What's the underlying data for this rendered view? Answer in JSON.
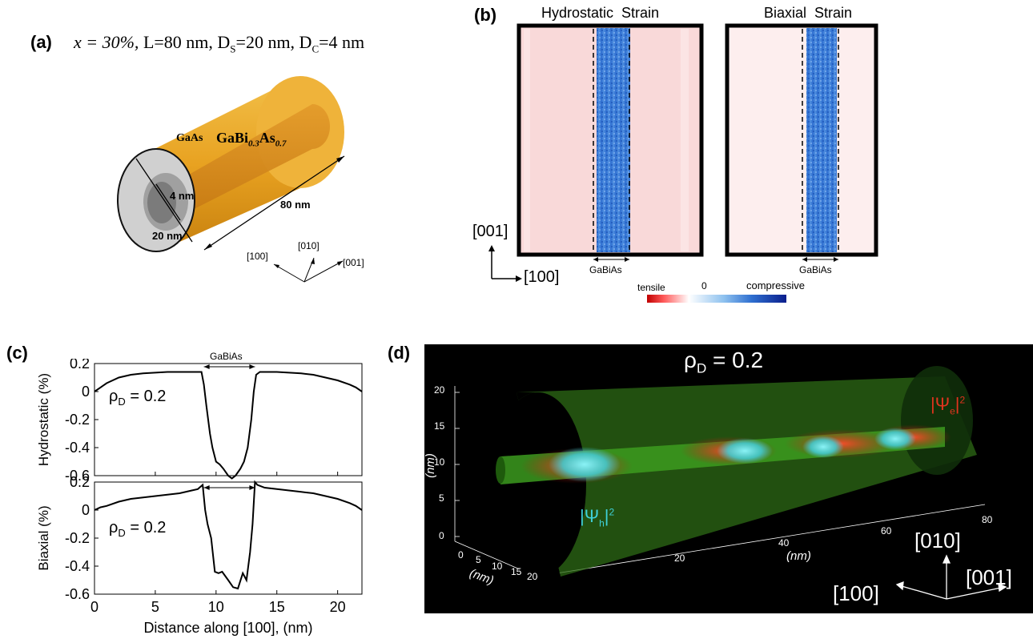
{
  "panel_a": {
    "label": "(a)",
    "params_x": "x = 30%,",
    "params_rest_L": "L=80 nm, D",
    "ds_sub": "S",
    "ds_val": "=20 nm, D",
    "dc_sub": "C",
    "dc_val": "=4 nm",
    "shell_label": "GaAs",
    "core_label_main": "GaBi",
    "core_sub_1": "0.3",
    "core_label_as": "As",
    "core_sub_2": "0.7",
    "dim_core": "4 nm",
    "dim_shell": "20 nm",
    "dim_length": "80 nm",
    "axis_100": "[100]",
    "axis_010": "[010]",
    "axis_001": "[001]"
  },
  "panel_b": {
    "label": "(b)",
    "title_left": "Hydrostatic  Strain",
    "title_right": "Biaxial  Strain",
    "region_label_left": "GaBiAs",
    "region_label_right": "GaBiAs",
    "axis_vertical": "[001]",
    "axis_horizontal": "[100]",
    "colorbar_tensile": "tensile",
    "colorbar_zero": "0",
    "colorbar_compressive": "compressive",
    "colors": {
      "tensile": "#d7191c",
      "neutral": "#ffffff",
      "compressive": "#0a1e8c",
      "background_pink": "#f9d9d9"
    }
  },
  "panel_c": {
    "label": "(c)",
    "region_label": "GaBiAs",
    "ylabel_top": "Hydrostatic  (%)",
    "ylabel_bottom": "Biaxial (%)",
    "rho_top": "ρ",
    "rho_top_sub": "D",
    "rho_top_val": " = 0.2",
    "rho_bottom": "ρ",
    "rho_bottom_sub": "D",
    "rho_bottom_val": " = 0.2",
    "xlabel": "Distance along [100], (nm)"
  },
  "panel_d": {
    "label": "(d)",
    "title_rho": "ρ",
    "title_sub": "D",
    "title_val": " = 0.2",
    "psi_e": "|Ψ",
    "psi_e_sub": "e",
    "psi_e_end": "|",
    "psi_e_sup": "2",
    "psi_h": "|Ψ",
    "psi_h_sub": "h",
    "psi_h_end": "|",
    "psi_h_sup": "2",
    "axis_nm_left": "(nm)",
    "axis_nm_bottom": "(nm)",
    "axis_nm_depth": "(nm)",
    "z_ticks": [
      "20",
      "15",
      "10",
      "5",
      "0"
    ],
    "x_ticks": [
      "20",
      "40",
      "60",
      "80"
    ],
    "y_ticks": [
      "0",
      "5",
      "10",
      "15",
      "20"
    ],
    "dir_010": "[010]",
    "dir_001": "[001]",
    "dir_100": "[100]",
    "colors": {
      "bg": "#000000",
      "tube": "#2e7d1a",
      "electron": "#e0341e",
      "hole": "#3fd0d8"
    }
  },
  "chart_data": [
    {
      "type": "line",
      "title": "",
      "xlabel": "",
      "ylabel": "Hydrostatic  (%)",
      "xlim": [
        0,
        22
      ],
      "ylim": [
        -0.6,
        0.2
      ],
      "yticks": [
        0.2,
        0,
        -0.2,
        -0.4,
        -0.6
      ],
      "series": [
        {
          "x": [
            0,
            0.5,
            1,
            2,
            3,
            4,
            5,
            6,
            7,
            8,
            8.5,
            8.8,
            9.0,
            9.2,
            9.5,
            9.7,
            10.0,
            10.3,
            10.6,
            11.0,
            11.3,
            11.6,
            12.0,
            12.3,
            12.6,
            12.9,
            13.1,
            13.3,
            13.6,
            14,
            15,
            16,
            17,
            18,
            19,
            20,
            21,
            21.5,
            22
          ],
          "y": [
            0.0,
            0.03,
            0.06,
            0.1,
            0.12,
            0.13,
            0.135,
            0.14,
            0.14,
            0.14,
            0.14,
            0.14,
            0.05,
            -0.1,
            -0.3,
            -0.4,
            -0.5,
            -0.52,
            -0.55,
            -0.6,
            -0.62,
            -0.6,
            -0.55,
            -0.5,
            -0.4,
            -0.2,
            0.0,
            0.12,
            0.14,
            0.14,
            0.14,
            0.135,
            0.13,
            0.12,
            0.1,
            0.08,
            0.05,
            0.03,
            0.0
          ]
        }
      ]
    },
    {
      "type": "line",
      "title": "",
      "xlabel": "Distance along [100], (nm)",
      "ylabel": "Biaxial (%)",
      "xlim": [
        0,
        22
      ],
      "ylim": [
        -0.6,
        0.2
      ],
      "xticks": [
        0,
        5,
        10,
        15,
        20
      ],
      "yticks": [
        0.2,
        0,
        -0.2,
        -0.4,
        -0.6
      ],
      "series": [
        {
          "x": [
            0,
            0.5,
            1,
            2,
            3,
            4,
            5,
            6,
            7,
            8,
            8.5,
            8.9,
            9.1,
            9.3,
            9.6,
            9.9,
            10.2,
            10.5,
            11.0,
            11.4,
            11.8,
            12.2,
            12.5,
            12.8,
            13.0,
            13.2,
            13.4,
            14,
            15,
            16,
            17,
            18,
            19,
            20,
            21,
            21.5,
            22
          ],
          "y": [
            0.0,
            0.02,
            0.03,
            0.06,
            0.08,
            0.09,
            0.1,
            0.11,
            0.12,
            0.14,
            0.15,
            0.18,
            0.0,
            -0.1,
            -0.2,
            -0.44,
            -0.45,
            -0.44,
            -0.5,
            -0.55,
            -0.56,
            -0.45,
            -0.5,
            -0.3,
            -0.1,
            0.2,
            0.18,
            0.16,
            0.15,
            0.14,
            0.13,
            0.12,
            0.1,
            0.08,
            0.05,
            0.03,
            0.0
          ]
        }
      ]
    }
  ]
}
